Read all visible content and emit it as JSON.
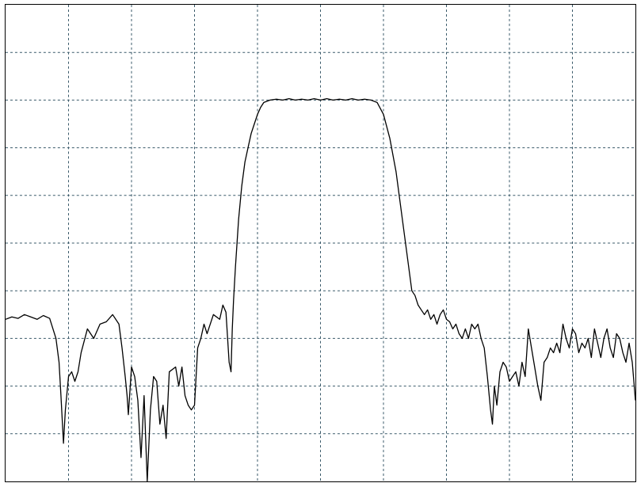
{
  "chart_data": {
    "type": "line",
    "title": "",
    "xlabel": "",
    "ylabel": "",
    "grid": true,
    "grid_style": "dashed",
    "grid_divisions": {
      "x": 10,
      "y": 10
    },
    "colors": {
      "trace": "#000000",
      "grid": "#3a5a6a",
      "frame": "#000000",
      "background": "#ffffff"
    },
    "xlim": [
      0,
      10
    ],
    "ylim": [
      0,
      10
    ],
    "series": [
      {
        "values": [
          [
            0.0,
            3.4
          ],
          [
            0.1,
            3.45
          ],
          [
            0.2,
            3.42
          ],
          [
            0.3,
            3.5
          ],
          [
            0.4,
            3.45
          ],
          [
            0.5,
            3.4
          ],
          [
            0.6,
            3.48
          ],
          [
            0.7,
            3.42
          ],
          [
            0.8,
            3.0
          ],
          [
            0.85,
            2.5
          ],
          [
            0.88,
            1.8
          ],
          [
            0.92,
            0.8
          ],
          [
            0.95,
            1.5
          ],
          [
            1.0,
            2.2
          ],
          [
            1.05,
            2.3
          ],
          [
            1.1,
            2.1
          ],
          [
            1.15,
            2.3
          ],
          [
            1.2,
            2.7
          ],
          [
            1.3,
            3.2
          ],
          [
            1.4,
            3.0
          ],
          [
            1.5,
            3.3
          ],
          [
            1.6,
            3.35
          ],
          [
            1.7,
            3.5
          ],
          [
            1.8,
            3.3
          ],
          [
            1.85,
            2.8
          ],
          [
            1.9,
            2.2
          ],
          [
            1.93,
            1.8
          ],
          [
            1.95,
            1.4
          ],
          [
            1.98,
            2.0
          ],
          [
            2.0,
            2.4
          ],
          [
            2.05,
            2.2
          ],
          [
            2.1,
            1.7
          ],
          [
            2.15,
            0.5
          ],
          [
            2.2,
            1.8
          ],
          [
            2.25,
            0.0
          ],
          [
            2.3,
            1.5
          ],
          [
            2.35,
            2.2
          ],
          [
            2.4,
            2.1
          ],
          [
            2.45,
            1.2
          ],
          [
            2.5,
            1.6
          ],
          [
            2.55,
            0.9
          ],
          [
            2.6,
            2.3
          ],
          [
            2.7,
            2.4
          ],
          [
            2.75,
            2.0
          ],
          [
            2.8,
            2.4
          ],
          [
            2.85,
            1.8
          ],
          [
            2.9,
            1.6
          ],
          [
            2.95,
            1.5
          ],
          [
            3.0,
            1.6
          ],
          [
            3.05,
            2.8
          ],
          [
            3.1,
            3.0
          ],
          [
            3.15,
            3.3
          ],
          [
            3.2,
            3.1
          ],
          [
            3.3,
            3.5
          ],
          [
            3.4,
            3.4
          ],
          [
            3.45,
            3.7
          ],
          [
            3.5,
            3.55
          ],
          [
            3.55,
            2.5
          ],
          [
            3.58,
            2.3
          ],
          [
            3.6,
            3.2
          ],
          [
            3.62,
            3.8
          ],
          [
            3.65,
            4.5
          ],
          [
            3.7,
            5.5
          ],
          [
            3.75,
            6.2
          ],
          [
            3.8,
            6.7
          ],
          [
            3.85,
            7.0
          ],
          [
            3.9,
            7.3
          ],
          [
            3.95,
            7.5
          ],
          [
            4.0,
            7.7
          ],
          [
            4.05,
            7.85
          ],
          [
            4.1,
            7.95
          ],
          [
            4.2,
            8.0
          ],
          [
            4.3,
            8.02
          ],
          [
            4.4,
            8.0
          ],
          [
            4.5,
            8.03
          ],
          [
            4.6,
            8.0
          ],
          [
            4.7,
            8.02
          ],
          [
            4.8,
            8.0
          ],
          [
            4.9,
            8.03
          ],
          [
            5.0,
            8.0
          ],
          [
            5.1,
            8.03
          ],
          [
            5.2,
            8.0
          ],
          [
            5.3,
            8.02
          ],
          [
            5.4,
            8.0
          ],
          [
            5.5,
            8.03
          ],
          [
            5.6,
            8.0
          ],
          [
            5.7,
            8.02
          ],
          [
            5.8,
            8.0
          ],
          [
            5.9,
            7.95
          ],
          [
            6.0,
            7.7
          ],
          [
            6.1,
            7.2
          ],
          [
            6.2,
            6.5
          ],
          [
            6.3,
            5.5
          ],
          [
            6.4,
            4.5
          ],
          [
            6.45,
            4.0
          ],
          [
            6.5,
            3.9
          ],
          [
            6.55,
            3.7
          ],
          [
            6.6,
            3.6
          ],
          [
            6.65,
            3.5
          ],
          [
            6.7,
            3.6
          ],
          [
            6.75,
            3.4
          ],
          [
            6.8,
            3.5
          ],
          [
            6.85,
            3.3
          ],
          [
            6.9,
            3.5
          ],
          [
            6.95,
            3.6
          ],
          [
            7.0,
            3.4
          ],
          [
            7.05,
            3.35
          ],
          [
            7.1,
            3.2
          ],
          [
            7.15,
            3.3
          ],
          [
            7.2,
            3.1
          ],
          [
            7.25,
            3.0
          ],
          [
            7.3,
            3.2
          ],
          [
            7.35,
            3.0
          ],
          [
            7.4,
            3.3
          ],
          [
            7.45,
            3.2
          ],
          [
            7.5,
            3.3
          ],
          [
            7.55,
            3.0
          ],
          [
            7.6,
            2.8
          ],
          [
            7.65,
            2.2
          ],
          [
            7.7,
            1.5
          ],
          [
            7.73,
            1.2
          ],
          [
            7.76,
            2.0
          ],
          [
            7.8,
            1.6
          ],
          [
            7.85,
            2.3
          ],
          [
            7.9,
            2.5
          ],
          [
            7.95,
            2.4
          ],
          [
            8.0,
            2.1
          ],
          [
            8.05,
            2.2
          ],
          [
            8.1,
            2.3
          ],
          [
            8.15,
            2.0
          ],
          [
            8.2,
            2.5
          ],
          [
            8.25,
            2.2
          ],
          [
            8.3,
            3.2
          ],
          [
            8.35,
            2.8
          ],
          [
            8.4,
            2.4
          ],
          [
            8.45,
            2.0
          ],
          [
            8.5,
            1.7
          ],
          [
            8.55,
            2.5
          ],
          [
            8.6,
            2.6
          ],
          [
            8.65,
            2.8
          ],
          [
            8.7,
            2.7
          ],
          [
            8.75,
            2.9
          ],
          [
            8.8,
            2.7
          ],
          [
            8.85,
            3.3
          ],
          [
            8.9,
            3.0
          ],
          [
            8.95,
            2.8
          ],
          [
            9.0,
            3.2
          ],
          [
            9.05,
            3.1
          ],
          [
            9.1,
            2.7
          ],
          [
            9.15,
            2.9
          ],
          [
            9.2,
            2.8
          ],
          [
            9.25,
            3.0
          ],
          [
            9.3,
            2.6
          ],
          [
            9.35,
            3.2
          ],
          [
            9.4,
            2.9
          ],
          [
            9.45,
            2.6
          ],
          [
            9.5,
            3.0
          ],
          [
            9.55,
            3.2
          ],
          [
            9.6,
            2.8
          ],
          [
            9.65,
            2.6
          ],
          [
            9.7,
            3.1
          ],
          [
            9.75,
            3.0
          ],
          [
            9.8,
            2.7
          ],
          [
            9.85,
            2.5
          ],
          [
            9.9,
            2.9
          ],
          [
            9.95,
            2.5
          ],
          [
            10.0,
            1.7
          ]
        ]
      }
    ]
  }
}
